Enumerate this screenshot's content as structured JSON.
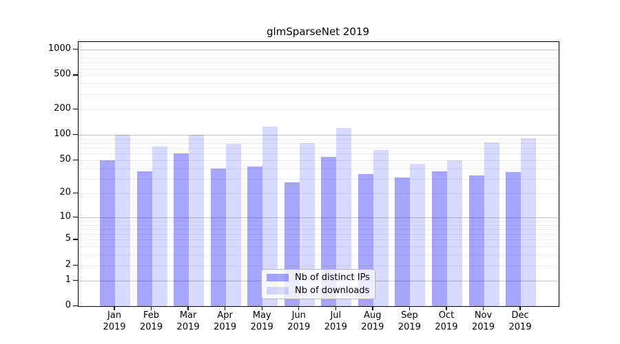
{
  "title": "glmSparseNet 2019",
  "chart_data": {
    "type": "bar",
    "title": "glmSparseNet 2019",
    "categories": [
      "Jan",
      "Feb",
      "Mar",
      "Apr",
      "May",
      "Jun",
      "Jul",
      "Aug",
      "Sep",
      "Oct",
      "Nov",
      "Dec"
    ],
    "year_label": "2019",
    "series": [
      {
        "name": "Nb of distinct IPs",
        "color": "rgba(0,0,255,0.35)",
        "values": [
          50,
          37,
          60,
          40,
          42,
          27,
          55,
          34,
          31,
          37,
          33,
          36
        ]
      },
      {
        "name": "Nb of downloads",
        "color": "rgba(0,0,255,0.15)",
        "values": [
          100,
          73,
          100,
          78,
          125,
          80,
          120,
          66,
          45,
          50,
          82,
          91
        ]
      }
    ],
    "xlabel": "",
    "ylabel": "",
    "yscale": "log1p",
    "yticks": [
      0,
      1,
      2,
      5,
      10,
      20,
      50,
      100,
      200,
      500,
      1000
    ],
    "ylim": [
      0,
      1230
    ],
    "grid": {
      "major": [
        1,
        10,
        100,
        1000
      ],
      "minor_base": [
        2,
        3,
        4,
        5,
        6,
        7,
        8,
        9
      ],
      "minor_decades": [
        0,
        1,
        2
      ]
    },
    "legend_position": "lower-center",
    "legend_entries": [
      "Nb of distinct IPs",
      "Nb of downloads"
    ]
  },
  "colors": {
    "major_grid": "#c4c4c4",
    "minor_grid": "#ededed",
    "axis_frame": "#000000",
    "background": "#ffffff"
  }
}
